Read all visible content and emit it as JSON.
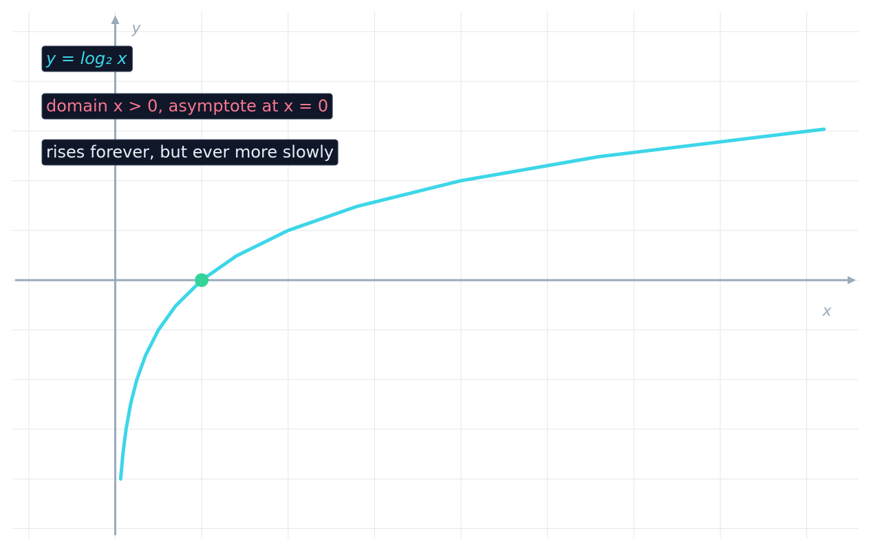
{
  "chart_data": {
    "type": "line",
    "x": [
      0.0625,
      0.09,
      0.125,
      0.18,
      0.25,
      0.35,
      0.5,
      0.7,
      1,
      1.4,
      2,
      2.8,
      4,
      5.6,
      8.2
    ],
    "series": [
      {
        "name": "y = log₂ x",
        "color": "#3dd6e8",
        "values": [
          -4,
          -3.474,
          -3,
          -2.474,
          -2,
          -1.515,
          -1,
          -0.515,
          0,
          0.485,
          1,
          1.485,
          2,
          2.485,
          3.036
        ]
      }
    ],
    "marker": {
      "x": 1,
      "y": 0,
      "color": "#34d399"
    },
    "xlabel": "x",
    "ylabel": "y",
    "xlim": [
      -1.19,
      8.6
    ],
    "ylim": [
      -5.2,
      5.4
    ],
    "xticks": [
      -1,
      0,
      1,
      2,
      3,
      4,
      5,
      6,
      7,
      8
    ],
    "yticks": [
      -5,
      -4,
      -3,
      -2,
      -1,
      0,
      1,
      2,
      3,
      4,
      5
    ],
    "grid": true,
    "annotations": [
      {
        "text": "y = log₂ x",
        "color": "#3dd6e8"
      },
      {
        "text": "domain x > 0, asymptote at x = 0",
        "color": "#f7768e"
      },
      {
        "text": "rises forever, but ever more slowly",
        "color": "#e8eef5"
      }
    ]
  }
}
